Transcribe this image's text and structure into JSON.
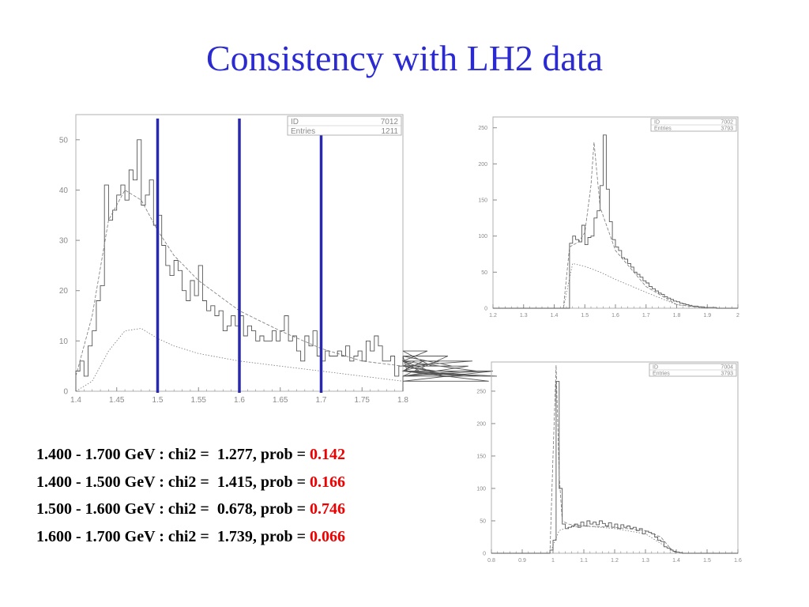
{
  "slide": {
    "title": "Consistency with LH2 data"
  },
  "colors": {
    "title": "#2a2ad0",
    "prob_value": "#ee0000",
    "cut_lines": "#2828b0",
    "axis": "#8a8a8a"
  },
  "fit_results": [
    {
      "range": "1.400 - 1.700 GeV",
      "chi2_label": " : chi2 =  ",
      "chi2": "1.277",
      "prob_label": ", prob = ",
      "prob": "0.142"
    },
    {
      "range": "1.400 - 1.500 GeV",
      "chi2_label": " : chi2 =  ",
      "chi2": "1.415",
      "prob_label": ", prob = ",
      "prob": "0.166"
    },
    {
      "range": "1.500 - 1.600 GeV",
      "chi2_label": " : chi2 =  ",
      "chi2": "0.678",
      "prob_label": ", prob = ",
      "prob": "0.746"
    },
    {
      "range": "1.600 - 1.700 GeV",
      "chi2_label": " : chi2 =  ",
      "chi2": "1.739",
      "prob_label": ", prob = ",
      "prob": "0.066"
    }
  ],
  "chart_data": [
    {
      "type": "histogram",
      "stats": {
        "id_label": "ID",
        "id": "7012",
        "entries_label": "Entries",
        "entries": "1211"
      },
      "xlim": [
        1.4,
        1.8
      ],
      "ylim": [
        0,
        55
      ],
      "xticks": [
        1.4,
        1.45,
        1.5,
        1.55,
        1.6,
        1.65,
        1.7,
        1.75,
        1.8
      ],
      "xtick_labels": [
        "1.4",
        "1.45",
        "1.5",
        "1.55",
        "1.6",
        "1.65",
        "1.7",
        "1.75",
        "1.8"
      ],
      "yticks": [
        0,
        10,
        20,
        30,
        40,
        50
      ],
      "ytick_labels": [
        "0",
        "10",
        "20",
        "30",
        "40",
        "50"
      ],
      "cut_lines": [
        1.5,
        1.6,
        1.7
      ],
      "series": [
        {
          "style": "solid",
          "bin_start": 1.4,
          "bin_width": 0.005,
          "values": [
            4,
            6,
            3,
            9,
            12,
            18,
            21,
            41,
            34,
            36,
            39,
            41,
            38,
            44,
            42,
            50,
            37,
            39,
            42,
            33,
            35,
            29,
            25,
            23,
            26,
            24,
            20,
            18,
            22,
            19,
            25,
            18,
            16,
            17,
            15,
            16,
            12,
            13,
            15,
            13,
            15,
            11,
            13,
            12,
            10,
            11,
            10,
            10,
            12,
            10,
            12,
            15,
            10,
            11,
            8,
            6,
            11,
            9,
            12,
            7,
            6,
            8,
            7,
            7,
            8,
            7,
            9,
            6,
            7,
            8,
            6,
            10,
            8,
            11,
            9,
            6,
            6,
            7,
            3,
            5,
            7,
            4,
            5,
            6,
            4,
            6,
            8,
            5,
            4,
            6,
            3,
            7,
            5,
            3,
            4,
            3,
            5,
            6,
            4,
            3,
            4,
            2,
            4,
            3
          ]
        },
        {
          "style": "dashed",
          "x": [
            1.4,
            1.42,
            1.44,
            1.46,
            1.48,
            1.5,
            1.52,
            1.55,
            1.6,
            1.65,
            1.7,
            1.75,
            1.8
          ],
          "values": [
            3,
            15,
            34,
            40,
            38,
            32,
            27,
            22,
            16,
            12,
            8.5,
            6,
            5
          ]
        },
        {
          "style": "dotted",
          "x": [
            1.4,
            1.42,
            1.44,
            1.46,
            1.48,
            1.5,
            1.52,
            1.55,
            1.6,
            1.65,
            1.7,
            1.75,
            1.8
          ],
          "values": [
            0,
            2,
            8,
            12,
            12.5,
            10.5,
            9,
            7.5,
            6,
            5,
            4,
            3,
            2
          ]
        }
      ]
    },
    {
      "type": "histogram",
      "stats": {
        "id_label": "ID",
        "id": "7002",
        "entries_label": "Entries",
        "entries": "3793"
      },
      "xlim": [
        1.2,
        2.0
      ],
      "ylim": [
        0,
        265
      ],
      "xticks": [
        1.2,
        1.3,
        1.4,
        1.5,
        1.6,
        1.7,
        1.8,
        1.9,
        2.0
      ],
      "xtick_labels": [
        "1.2",
        "1.3",
        "1.4",
        "1.5",
        "1.6",
        "1.7",
        "1.8",
        "1.9",
        "2"
      ],
      "yticks": [
        0,
        50,
        100,
        150,
        200,
        250
      ],
      "ytick_labels": [
        "0",
        "50",
        "100",
        "150",
        "200",
        "250"
      ],
      "cut_lines": [],
      "series": [
        {
          "style": "solid",
          "bin_start": 1.2,
          "bin_width": 0.01,
          "values": [
            0,
            0,
            0,
            0,
            0,
            0,
            0,
            0,
            0,
            0,
            0,
            0,
            0,
            0,
            0,
            0,
            0,
            0,
            0,
            0,
            0,
            0,
            0,
            0,
            0,
            90,
            100,
            95,
            92,
            115,
            88,
            98,
            100,
            125,
            135,
            170,
            240,
            165,
            120,
            95,
            85,
            80,
            70,
            68,
            62,
            57,
            50,
            47,
            43,
            38,
            35,
            30,
            27,
            24,
            21,
            19,
            16,
            14,
            12,
            10,
            9,
            7,
            6,
            5,
            4,
            3,
            3,
            2,
            2,
            1,
            1,
            1,
            1,
            0,
            0,
            0,
            0,
            0,
            0,
            0
          ]
        },
        {
          "style": "dashed",
          "x": [
            1.43,
            1.45,
            1.48,
            1.5,
            1.52,
            1.53,
            1.55,
            1.6,
            1.7,
            1.8,
            1.9
          ],
          "values": [
            0,
            85,
            92,
            105,
            170,
            230,
            140,
            80,
            30,
            5,
            0
          ]
        },
        {
          "style": "dotted",
          "x": [
            1.43,
            1.46,
            1.5,
            1.55,
            1.6,
            1.7,
            1.8,
            1.9
          ],
          "values": [
            0,
            62,
            58,
            50,
            40,
            22,
            5,
            0
          ]
        }
      ]
    },
    {
      "type": "histogram",
      "stats": {
        "id_label": "ID",
        "id": "7004",
        "entries_label": "Entries",
        "entries": "3793"
      },
      "xlim": [
        0.8,
        1.6
      ],
      "ylim": [
        0,
        295
      ],
      "xticks": [
        0.8,
        0.9,
        1.0,
        1.1,
        1.2,
        1.3,
        1.4,
        1.5,
        1.6
      ],
      "xtick_labels": [
        "0.8",
        "0.9",
        "1",
        "1.1",
        "1.2",
        "1.3",
        "1.4",
        "1.5",
        "1.6"
      ],
      "yticks": [
        0,
        50,
        100,
        150,
        200,
        250
      ],
      "ytick_labels": [
        "0",
        "50",
        "100",
        "150",
        "200",
        "250"
      ],
      "cut_lines": [],
      "series": [
        {
          "style": "solid",
          "bin_start": 0.8,
          "bin_width": 0.01,
          "values": [
            0,
            0,
            0,
            0,
            0,
            0,
            0,
            0,
            0,
            0,
            0,
            0,
            0,
            0,
            0,
            0,
            0,
            0,
            0,
            5,
            20,
            265,
            100,
            45,
            38,
            40,
            42,
            45,
            40,
            48,
            42,
            50,
            45,
            48,
            44,
            50,
            46,
            42,
            47,
            40,
            45,
            38,
            44,
            40,
            42,
            38,
            40,
            35,
            38,
            30,
            34,
            32,
            30,
            25,
            20,
            18,
            10,
            8,
            5,
            3,
            2,
            1,
            0,
            0,
            0,
            0,
            0,
            0,
            0,
            0,
            0,
            0,
            0,
            0,
            0,
            0,
            0,
            0,
            0,
            0
          ]
        },
        {
          "style": "dashed",
          "x": [
            0.99,
            1.0,
            1.01,
            1.02,
            1.03,
            1.05,
            1.1,
            1.2,
            1.3,
            1.35,
            1.38,
            1.4
          ],
          "values": [
            0,
            150,
            290,
            120,
            50,
            45,
            42,
            40,
            35,
            25,
            8,
            0
          ]
        },
        {
          "style": "dotted",
          "x": [
            0.99,
            1.02,
            1.05,
            1.1,
            1.2,
            1.3,
            1.35,
            1.4
          ],
          "values": [
            0,
            35,
            40,
            42,
            38,
            30,
            15,
            0
          ]
        }
      ]
    }
  ]
}
